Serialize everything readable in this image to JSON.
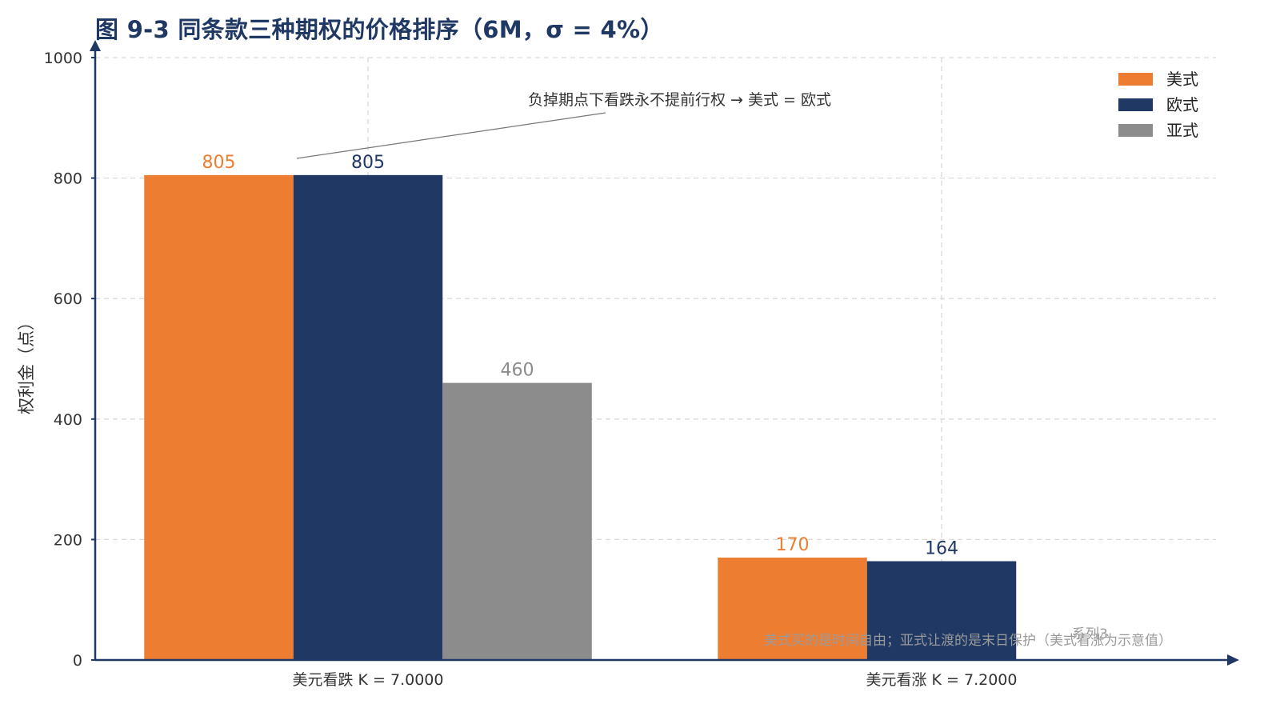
{
  "chart_data": {
    "type": "bar",
    "title": "图 9-3 同条款三种期权的价格排序（6M，σ = 4%）",
    "xlabel": "",
    "ylabel": "权利金（点）",
    "ylim": [
      0,
      1000
    ],
    "yticks": [
      0,
      200,
      400,
      600,
      800,
      1000
    ],
    "categories": [
      "美元看跌 K = 7.0000",
      "美元看涨 K = 7.2000"
    ],
    "series": [
      {
        "name": "美式",
        "color": "#ed7d31",
        "values": [
          805,
          170
        ]
      },
      {
        "name": "欧式",
        "color": "#1f3864",
        "values": [
          805,
          164
        ]
      },
      {
        "name": "亚式",
        "color": "#8c8c8c",
        "values": [
          460,
          null
        ]
      }
    ],
    "grid": true,
    "legend_position": "top-right",
    "annotation": "负掉期点下看跌永不提前行权 → 美式 = 欧式",
    "footnote": "美式买的是时间自由；亚式让渡的是末日保护（美式看涨为示意值）",
    "footnote_overlap": "系列3"
  },
  "colors": {
    "axis": "#1f3864",
    "grid": "#d9d9d9",
    "title": "#1f3864"
  }
}
